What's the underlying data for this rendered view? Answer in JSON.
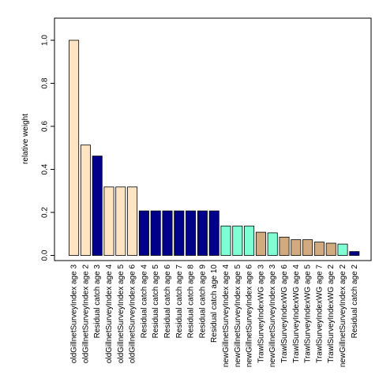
{
  "chart_data": {
    "type": "bar",
    "ylabel": "relative weight",
    "ylim": [
      0,
      1.09
    ],
    "yticks": [
      "0.0",
      "0.2",
      "0.4",
      "0.6",
      "0.8",
      "1.0"
    ],
    "grid": false,
    "categories": [
      "oldGillnetSurveyIndex age 3",
      "oldGillnetSurveyIndex age 2",
      "Residual catch age 3",
      "oldGillnetSurveyIndex age 4",
      "oldGillnetSurveyIndex age 5",
      "oldGillnetSurveyIndex age 6",
      "Residual catch age 4",
      "Residual catch age 5",
      "Residual catch age 6",
      "Residual catch age 7",
      "Residual catch age 8",
      "Residual catch age 9",
      "Residual catch age 10",
      "newGillnetSurveyIndex age 4",
      "newGillnetSurveyIndex age 5",
      "newGillnetSurveyIndex age 6",
      "TrawlSurveyIndexWG age 3",
      "newGillnetSurveyIndex age 3",
      "TrawlSurveyIndexWG age 6",
      "TrawlSurveyIndexWG age 4",
      "TrawlSurveyIndexWG age 5",
      "TrawlSurveyIndexWG age 7",
      "TrawlSurveyIndexWG age 2",
      "newGillnetSurveyIndex age 2",
      "Residual catch age 2"
    ],
    "values": [
      1.0,
      0.513,
      0.462,
      0.318,
      0.318,
      0.318,
      0.207,
      0.207,
      0.207,
      0.207,
      0.207,
      0.207,
      0.207,
      0.137,
      0.137,
      0.137,
      0.108,
      0.105,
      0.085,
      0.073,
      0.073,
      0.062,
      0.057,
      0.053,
      0.018
    ],
    "groups": [
      "old",
      "old",
      "residual",
      "old",
      "old",
      "old",
      "residual",
      "residual",
      "residual",
      "residual",
      "residual",
      "residual",
      "residual",
      "new",
      "new",
      "new",
      "trawl",
      "new",
      "trawl",
      "trawl",
      "trawl",
      "trawl",
      "trawl",
      "new",
      "residual"
    ],
    "colors": {
      "old": "#FFE4C4",
      "residual": "#00008B",
      "new": "#7FFFD4",
      "trawl": "#D2AA80"
    }
  }
}
